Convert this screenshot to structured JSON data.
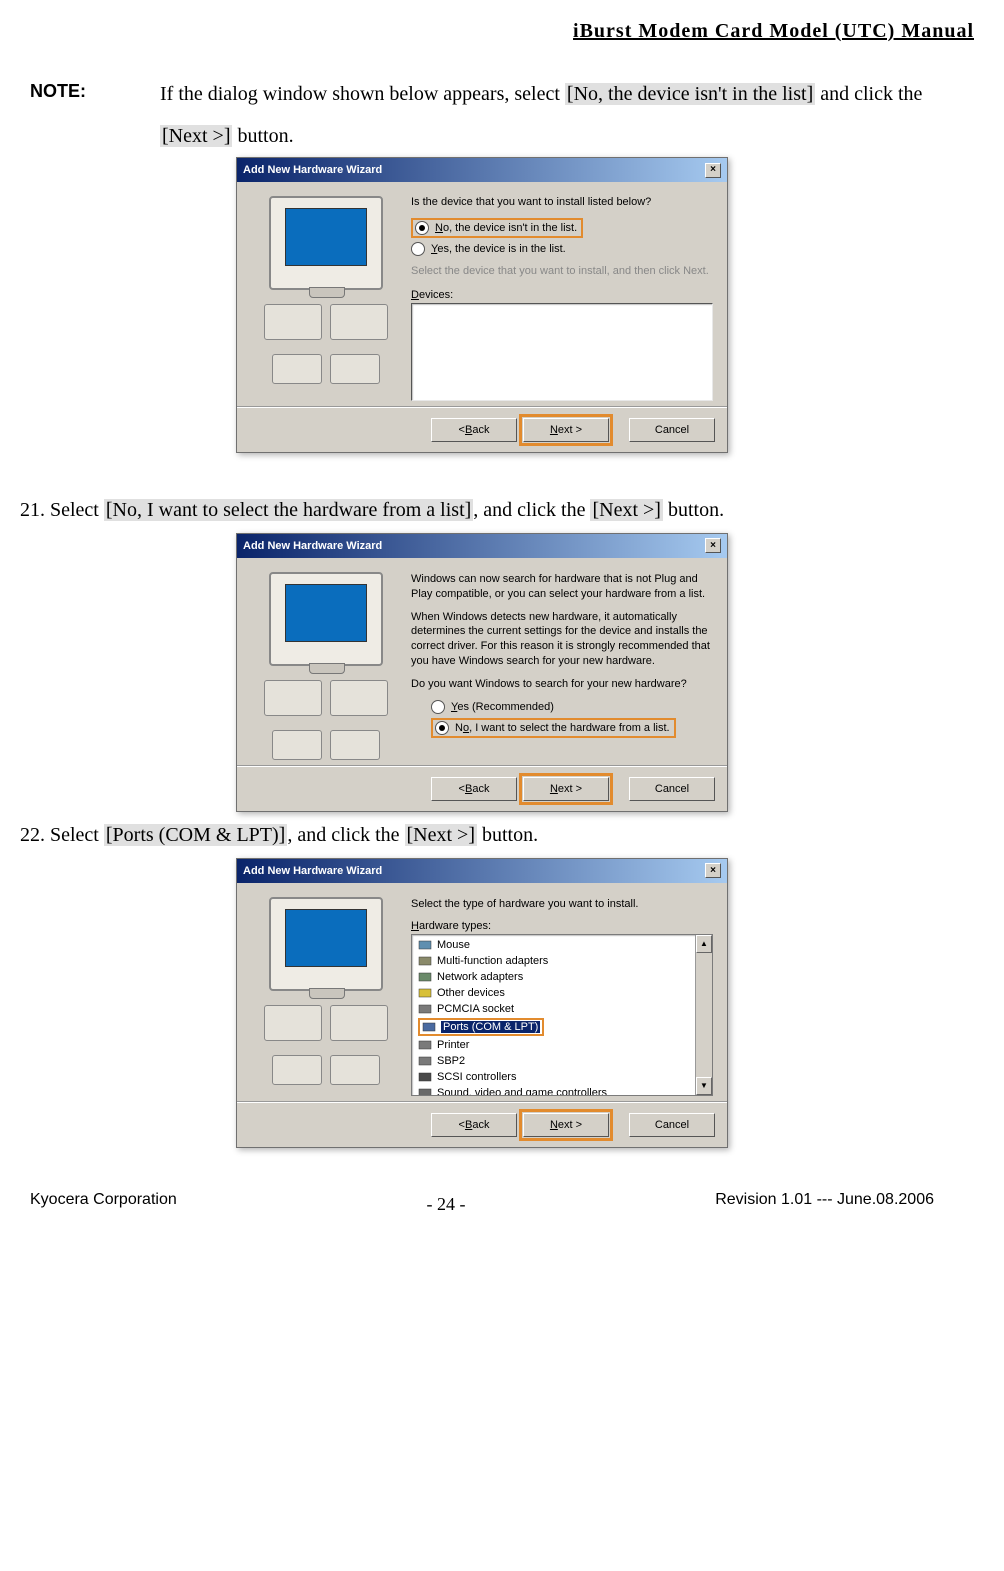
{
  "header": {
    "title": "iBurst  Modem  Card  Model  (UTC)  Manual"
  },
  "note": {
    "label": "NOTE:",
    "text_a": "If the dialog window shown below appears, select ",
    "hl_a": "[No, the device isn't in the list]",
    "text_b": " and click the ",
    "hl_b": "[Next >]",
    "text_c": " button."
  },
  "wiz1": {
    "title": "Add New Hardware Wizard",
    "question": "Is the device that you want to install listed below?",
    "opt_no_html": "<u>N</u>o, the device isn't in the list.",
    "opt_yes_html": "<u>Y</u>es, the device is in the list.",
    "hint": "Select the device that you want to install, and then click Next.",
    "devices_label_html": "<u>D</u>evices:",
    "btn_back_html": "< <u>B</u>ack",
    "btn_next_html": "<u>N</u>ext >",
    "btn_cancel": "Cancel"
  },
  "step21": {
    "pre": "21. Select ",
    "hl_a": "[No, I want to select the hardware from a list]",
    "mid": ", and click the ",
    "hl_b": "[Next >]",
    "post": " button."
  },
  "wiz2": {
    "title": "Add New Hardware Wizard",
    "p1": "Windows can now search for hardware that is not Plug and Play compatible, or you can select your hardware from a list.",
    "p2": "When Windows detects new hardware, it automatically determines the current settings for the device and installs the correct driver. For this reason it is strongly recommended that you have Windows search for your new hardware.",
    "p3": "Do you want Windows to search for your new hardware?",
    "opt_yes_html": "<u>Y</u>es (Recommended)",
    "opt_no_html": "N<u>o</u>, I want to select the hardware from a list.",
    "btn_back_html": "< <u>B</u>ack",
    "btn_next_html": "<u>N</u>ext >",
    "btn_cancel": "Cancel"
  },
  "step22": {
    "pre": "22. Select ",
    "hl_a": "[Ports (COM & LPT)]",
    "mid": ", and click the ",
    "hl_b": "[Next >]",
    "post": " button."
  },
  "wiz3": {
    "title": "Add New Hardware Wizard",
    "prompt": "Select the type of hardware you want to install.",
    "label_html": "<u>H</u>ardware types:",
    "items": [
      {
        "label": "Mouse",
        "icon_color": "#5f8fb0"
      },
      {
        "label": "Multi-function adapters",
        "icon_color": "#8a8a6a"
      },
      {
        "label": "Network adapters",
        "icon_color": "#6a8a6a"
      },
      {
        "label": "Other devices",
        "icon_color": "#d8c038"
      },
      {
        "label": "PCMCIA socket",
        "icon_color": "#7a7a7a"
      },
      {
        "label": "Ports (COM & LPT)",
        "icon_color": "#4a6aa0",
        "selected": true
      },
      {
        "label": "Printer",
        "icon_color": "#7a7a7a"
      },
      {
        "label": "SBP2",
        "icon_color": "#7a7a7a"
      },
      {
        "label": "SCSI controllers",
        "icon_color": "#4a4a4a"
      },
      {
        "label": "Sound, video and game controllers",
        "icon_color": "#6a6a6a"
      }
    ],
    "btn_back_html": "< <u>B</u>ack",
    "btn_next_html": "<u>N</u>ext >",
    "btn_cancel": "Cancel"
  },
  "footer": {
    "left": "Kyocera Corporation",
    "page": "- 24 -",
    "right": "Revision 1.01 --- June.08.2006"
  },
  "colors": {
    "highlight": "#e28b2e",
    "titlebar_start": "#0a246a",
    "titlebar_end": "#a6caf0",
    "win_bg": "#d4d0c8"
  }
}
